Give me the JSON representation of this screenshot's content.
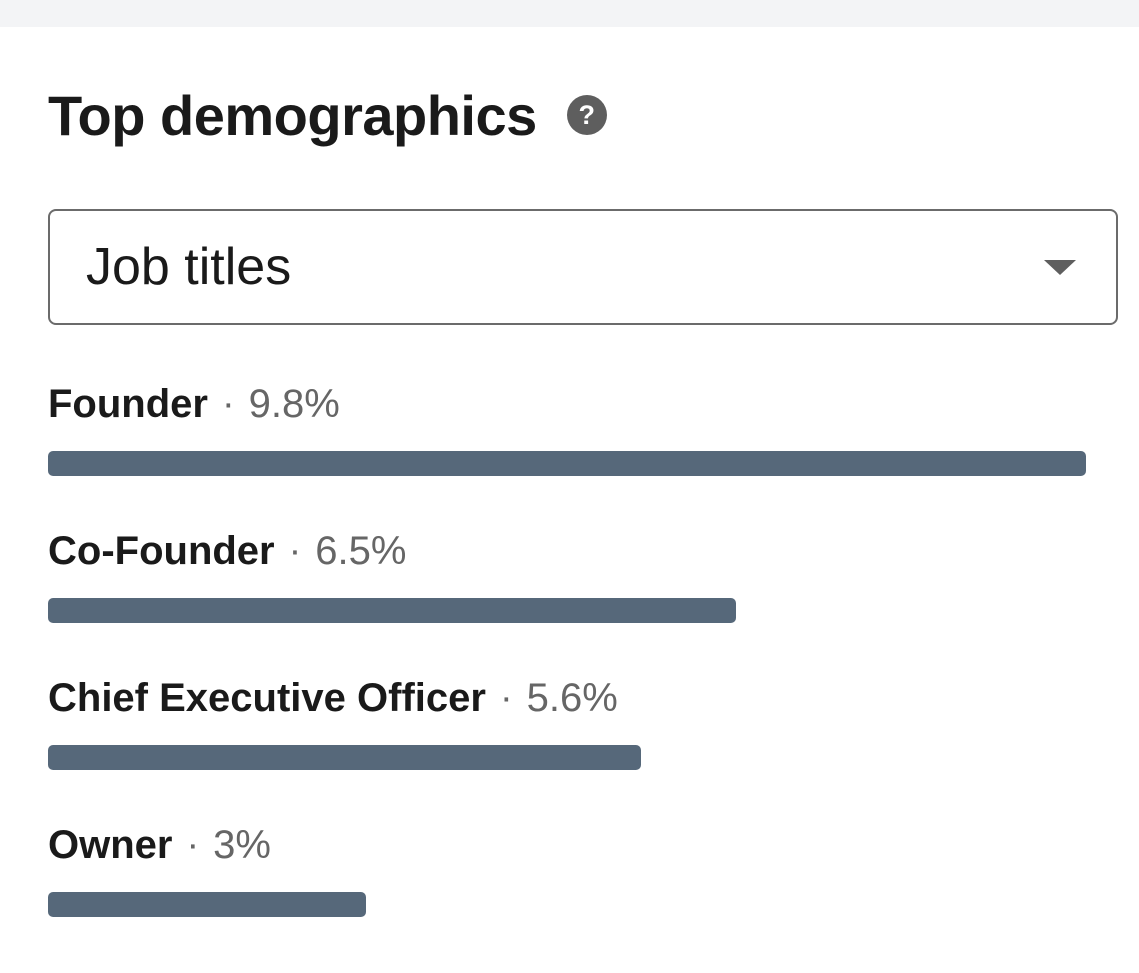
{
  "header": {
    "title": "Top demographics",
    "help_icon": "question-circle-icon"
  },
  "filter": {
    "selected": "Job titles",
    "caret_icon": "caret-down-icon"
  },
  "colors": {
    "bar": "#56687a",
    "title_text": "#1a1a1a",
    "secondary_text": "#666666"
  },
  "demographics": [
    {
      "name": "Founder",
      "percent_label": "9.8%",
      "value": 9.8
    },
    {
      "name": "Co-Founder",
      "percent_label": "6.5%",
      "value": 6.5
    },
    {
      "name": "Chief Executive Officer",
      "percent_label": "5.6%",
      "value": 5.6
    },
    {
      "name": "Owner",
      "percent_label": "3%",
      "value": 3.0
    }
  ]
}
